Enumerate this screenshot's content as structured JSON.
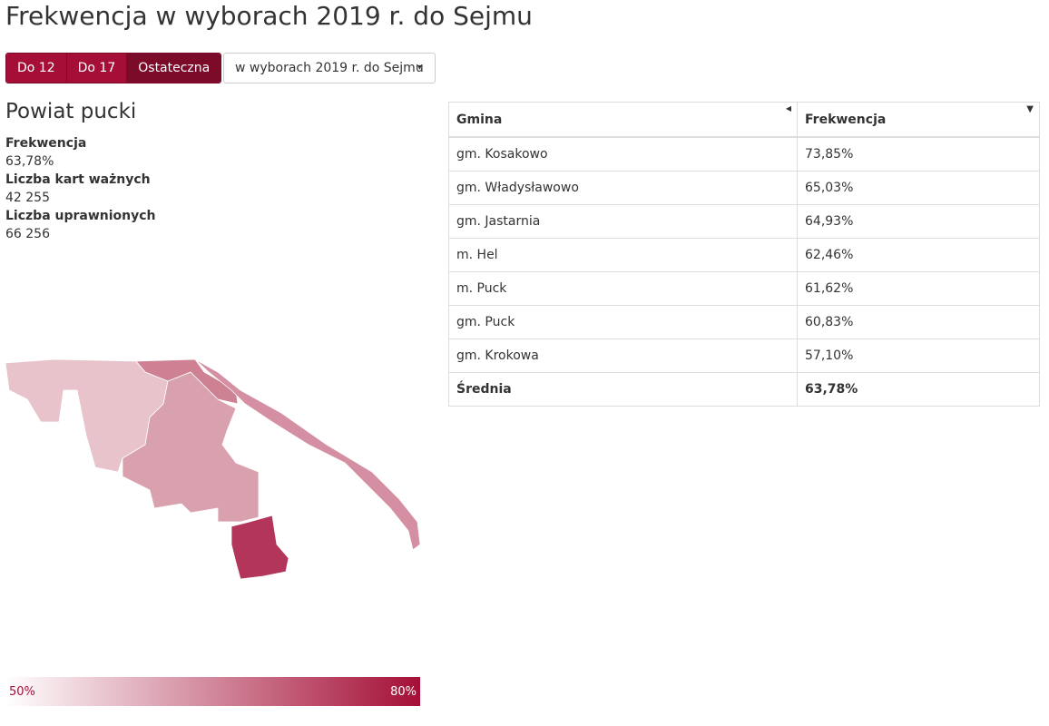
{
  "header": {
    "title": "Frekwencja w wyborach 2019 r. do Sejmu"
  },
  "controls": {
    "buttons": [
      "Do 12",
      "Do 17",
      "Ostateczna"
    ],
    "dropdown": "w wyborach 2019 r. do Sejmu"
  },
  "summary": {
    "title": "Powiat pucki",
    "stats": [
      {
        "label": "Frekwencja",
        "value": "63,78%"
      },
      {
        "label": "Liczba kart ważnych",
        "value": "42 255"
      },
      {
        "label": "Liczba uprawnionych",
        "value": "66 256"
      }
    ]
  },
  "table": {
    "columns": [
      "Gmina",
      "Frekwencja"
    ],
    "rows": [
      [
        "gm. Kosakowo",
        "73,85%"
      ],
      [
        "gm. Władysławowo",
        "65,03%"
      ],
      [
        "gm. Jastarnia",
        "64,93%"
      ],
      [
        "m. Hel",
        "62,46%"
      ],
      [
        "m. Puck",
        "61,62%"
      ],
      [
        "gm. Puck",
        "60,83%"
      ],
      [
        "gm. Krokowa",
        "57,10%"
      ]
    ],
    "footer": [
      "Średnia",
      "63,78%"
    ]
  },
  "legend": {
    "min": "50%",
    "max": "80%"
  }
}
